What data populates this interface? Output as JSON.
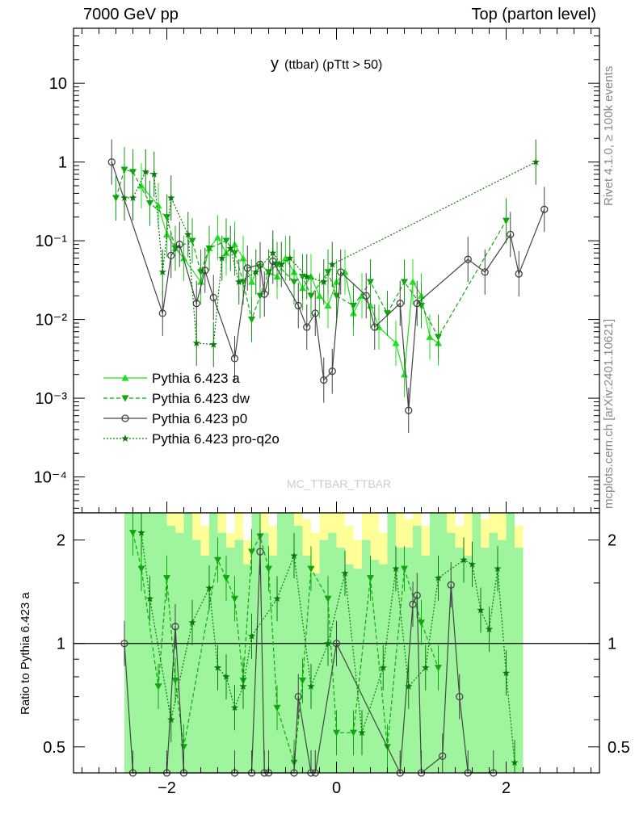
{
  "header": {
    "left": "7000 GeV pp",
    "right": "Top (parton level)"
  },
  "side_labels": {
    "rivet": "Rivet 4.1.0, ≥ 100k events",
    "mcplots": "mcplots.cern.ch [arXiv:2401.10621]"
  },
  "colors": {
    "a": "#1ee01e",
    "dw": "#0ea80e",
    "p0": "#444444",
    "pro_q2o": "#0a7a0a",
    "band_yellow": "#ffff99",
    "band_green": "#9ef59e"
  },
  "chart_data": [
    {
      "type": "line",
      "title": "y",
      "subtitle": "(ttbar)  (pTtt > 50)",
      "watermark": "MC_TTBAR_TTBAR",
      "xlabel": "",
      "ylabel": "",
      "yscale": "log",
      "xlim": [
        -3.1,
        3.1
      ],
      "ylim": [
        3.5e-05,
        50
      ],
      "y_ticks": [
        {
          "value": 10,
          "label": "10"
        },
        {
          "value": 1,
          "label": "1"
        },
        {
          "value": 0.1,
          "label": "10⁻¹"
        },
        {
          "value": 0.01,
          "label": "10⁻²"
        },
        {
          "value": 0.001,
          "label": "10⁻³"
        },
        {
          "value": 0.0001,
          "label": "10⁻⁴"
        }
      ],
      "legend_position": "center-left",
      "series": [
        {
          "name": "Pythia 6.423 a",
          "key": "a",
          "marker": "triangle-up",
          "dash": "solid",
          "x": [
            -2.3,
            -2.1,
            -2.0,
            -1.9,
            -1.8,
            -1.6,
            -1.5,
            -1.4,
            -1.3,
            -1.2,
            -1.1,
            -1.0,
            -0.9,
            -0.8,
            -0.7,
            -0.6,
            -0.5,
            -0.4,
            -0.3,
            -0.2,
            -0.1,
            0.0,
            0.1,
            0.2,
            0.3,
            0.4,
            0.5,
            0.7,
            0.8,
            0.9,
            1.0,
            1.1,
            1.2
          ],
          "y": [
            0.5,
            0.28,
            0.12,
            0.08,
            0.06,
            0.03,
            0.08,
            0.11,
            0.07,
            0.09,
            0.06,
            0.03,
            0.05,
            0.04,
            0.035,
            0.06,
            0.04,
            0.025,
            0.035,
            0.02,
            0.015,
            0.03,
            0.04,
            0.012,
            0.02,
            0.015,
            0.008,
            0.005,
            0.002,
            0.03,
            0.02,
            0.006,
            0.005
          ]
        },
        {
          "name": "Pythia 6.423 dw",
          "key": "dw",
          "marker": "triangle-down",
          "dash": "dashed",
          "x": [
            -2.6,
            -2.5,
            -2.4,
            -2.2,
            -2.0,
            -1.9,
            -1.7,
            -1.6,
            -1.5,
            -1.3,
            -1.2,
            -1.1,
            -1.0,
            -0.9,
            -0.8,
            -0.7,
            -0.5,
            -0.4,
            -0.3,
            -0.1,
            0.0,
            0.2,
            0.4,
            0.6,
            0.8,
            1.0,
            1.2,
            2.0
          ],
          "y": [
            0.35,
            0.8,
            0.75,
            0.3,
            0.2,
            0.08,
            0.1,
            0.04,
            0.08,
            0.1,
            0.07,
            0.03,
            0.01,
            0.02,
            0.04,
            0.05,
            0.03,
            0.035,
            0.02,
            0.04,
            0.02,
            0.015,
            0.03,
            0.012,
            0.03,
            0.015,
            0.006,
            0.18
          ]
        },
        {
          "name": "Pythia 6.423 p0",
          "key": "p0",
          "marker": "circle",
          "dash": "solid",
          "x": [
            -2.65,
            -2.05,
            -1.95,
            -1.85,
            -1.65,
            -1.55,
            -1.45,
            -1.2,
            -1.05,
            -0.9,
            -0.85,
            -0.75,
            -0.45,
            -0.35,
            -0.25,
            -0.15,
            -0.05,
            0.05,
            0.35,
            0.45,
            0.75,
            0.85,
            0.95,
            1.55,
            1.75,
            2.05,
            2.15,
            2.45
          ],
          "y": [
            1.0,
            0.012,
            0.065,
            0.09,
            0.016,
            0.042,
            0.019,
            0.0032,
            0.045,
            0.05,
            0.021,
            0.055,
            0.015,
            0.008,
            0.012,
            0.0017,
            0.0022,
            0.04,
            0.02,
            0.008,
            0.016,
            0.0007,
            0.016,
            0.058,
            0.04,
            0.12,
            0.038,
            0.25
          ]
        },
        {
          "name": "Pythia 6.423 pro-q2o",
          "key": "pro_q2o",
          "marker": "star",
          "dash": "dotted",
          "x": [
            -2.5,
            -2.4,
            -2.25,
            -2.15,
            -2.05,
            -1.95,
            -1.75,
            -1.65,
            -1.45,
            -1.35,
            -1.25,
            -1.15,
            -0.95,
            -0.75,
            -0.65,
            -0.55,
            -0.35,
            -0.15,
            -0.05,
            2.35
          ],
          "y": [
            0.35,
            0.35,
            0.75,
            0.7,
            0.04,
            0.35,
            0.12,
            0.005,
            0.0048,
            0.06,
            0.08,
            0.03,
            0.04,
            0.07,
            0.05,
            0.06,
            0.035,
            0.03,
            0.05,
            1.0
          ]
        }
      ]
    },
    {
      "type": "line",
      "title": "",
      "ylabel": "Ratio to Pythia 6.423 a",
      "xlabel": "",
      "yscale": "log",
      "xlim": [
        -3.1,
        3.1
      ],
      "ylim": [
        0.42,
        2.4
      ],
      "y_ticks": [
        {
          "value": 2,
          "label": "2"
        },
        {
          "value": 1,
          "label": "1"
        },
        {
          "value": 0.5,
          "label": "0.5"
        }
      ],
      "x_ticks": [
        {
          "value": -2,
          "label": "−2"
        },
        {
          "value": 0,
          "label": "0"
        },
        {
          "value": 2,
          "label": "2"
        }
      ],
      "bands": {
        "x_edges": [
          -2.5,
          -2.4,
          -2.3,
          -2.2,
          -2.1,
          -2.0,
          -1.9,
          -1.8,
          -1.7,
          -1.6,
          -1.5,
          -1.4,
          -1.3,
          -1.2,
          -1.1,
          -1.0,
          -0.9,
          -0.8,
          -0.7,
          -0.6,
          -0.5,
          -0.4,
          -0.3,
          -0.2,
          -0.1,
          0.0,
          0.1,
          0.2,
          0.3,
          0.4,
          0.5,
          0.6,
          0.7,
          0.8,
          0.9,
          1.0,
          1.1,
          1.2,
          1.3,
          1.4,
          1.5,
          1.6,
          1.7,
          1.8,
          1.9,
          2.0,
          2.1,
          2.2
        ],
        "yellow_high": [
          2.4,
          2.4,
          2.4,
          2.4,
          2.4,
          2.4,
          2.4,
          2.4,
          2.4,
          2.2,
          2.4,
          2.4,
          2.1,
          2.4,
          2.0,
          2.4,
          2.4,
          2.2,
          2.4,
          2.4,
          2.4,
          2.3,
          2.1,
          2.4,
          2.4,
          2.4,
          2.2,
          2.0,
          2.4,
          2.4,
          2.1,
          2.4,
          2.4,
          2.3,
          2.4,
          2.2,
          2.4,
          2.4,
          2.4,
          2.2,
          2.4,
          2.4,
          2.3,
          2.4,
          2.4,
          2.4,
          2.2
        ],
        "green_high": [
          2.4,
          2.4,
          2.4,
          2.4,
          2.4,
          2.2,
          2.1,
          2.4,
          2.0,
          1.8,
          2.4,
          2.1,
          1.9,
          2.0,
          1.7,
          2.4,
          2.1,
          1.8,
          2.4,
          2.4,
          2.2,
          1.8,
          1.6,
          2.0,
          2.1,
          1.9,
          1.7,
          1.65,
          2.0,
          1.75,
          1.7,
          2.4,
          1.9,
          1.9,
          2.2,
          1.8,
          2.4,
          2.4,
          2.1,
          1.9,
          1.8,
          2.4,
          1.9,
          2.1,
          2.0,
          2.4,
          1.9
        ]
      },
      "series": [
        {
          "name": "Pythia 6.423 a",
          "key": "a",
          "marker": "none",
          "dash": "solid",
          "x": [
            -3.1,
            3.1
          ],
          "y": [
            1.0,
            1.0
          ]
        },
        {
          "name": "Pythia 6.423 dw",
          "key": "dw",
          "marker": "triangle-down",
          "dash": "dashed",
          "x": [
            -2.4,
            -2.3,
            -2.1,
            -2.0,
            -1.9,
            -1.8,
            -1.4,
            -1.3,
            -1.2,
            -1.1,
            -1.0,
            -0.9,
            -0.8,
            -0.7,
            -0.5,
            -0.4,
            -0.3,
            -0.1,
            0.0,
            0.2,
            0.4,
            0.6,
            0.8,
            1.0,
            1.2
          ],
          "y": [
            2.1,
            1.65,
            0.75,
            1.55,
            0.78,
            0.5,
            1.75,
            1.55,
            1.35,
            0.78,
            1.85,
            2.05,
            1.65,
            0.65,
            0.45,
            0.78,
            1.65,
            1.35,
            0.55,
            0.55,
            1.55,
            0.5,
            1.65,
            1.15,
            0.85
          ]
        },
        {
          "name": "Pythia 6.423 p0",
          "key": "p0",
          "marker": "circle",
          "dash": "solid",
          "x": [
            -2.5,
            -2.4,
            -2.0,
            -1.9,
            -1.8,
            -1.2,
            -1.0,
            -0.9,
            -0.85,
            -0.8,
            -0.5,
            -0.45,
            -0.3,
            -0.25,
            0.0,
            0.75,
            0.9,
            0.95,
            1.0,
            1.25,
            1.35,
            1.45,
            1.55,
            1.85
          ],
          "y": [
            1.0,
            0.42,
            0.42,
            1.12,
            0.42,
            0.42,
            0.42,
            1.85,
            0.42,
            0.42,
            0.42,
            0.7,
            0.42,
            0.42,
            1.0,
            0.42,
            1.3,
            1.38,
            0.42,
            0.47,
            1.48,
            0.7,
            0.42,
            0.42
          ]
        },
        {
          "name": "Pythia 6.423 pro-q2o",
          "key": "pro_q2o",
          "marker": "star",
          "dash": "dotted",
          "x": [
            -2.3,
            -2.2,
            -1.95,
            -1.7,
            -1.5,
            -1.4,
            -1.3,
            -1.2,
            -1.1,
            -1.0,
            -0.7,
            -0.5,
            -0.3,
            -0.1,
            0.1,
            0.3,
            0.55,
            0.7,
            0.85,
            1.05,
            1.2,
            1.5,
            1.6,
            1.7,
            1.8,
            1.9,
            2.0,
            2.1
          ],
          "y": [
            2.1,
            1.35,
            0.6,
            1.15,
            1.45,
            0.85,
            0.8,
            0.65,
            0.75,
            1.05,
            1.35,
            1.8,
            0.75,
            1.0,
            1.6,
            0.55,
            0.85,
            1.65,
            0.75,
            0.85,
            1.55,
            1.75,
            1.7,
            1.25,
            1.1,
            1.65,
            0.82,
            0.45
          ]
        }
      ]
    }
  ]
}
